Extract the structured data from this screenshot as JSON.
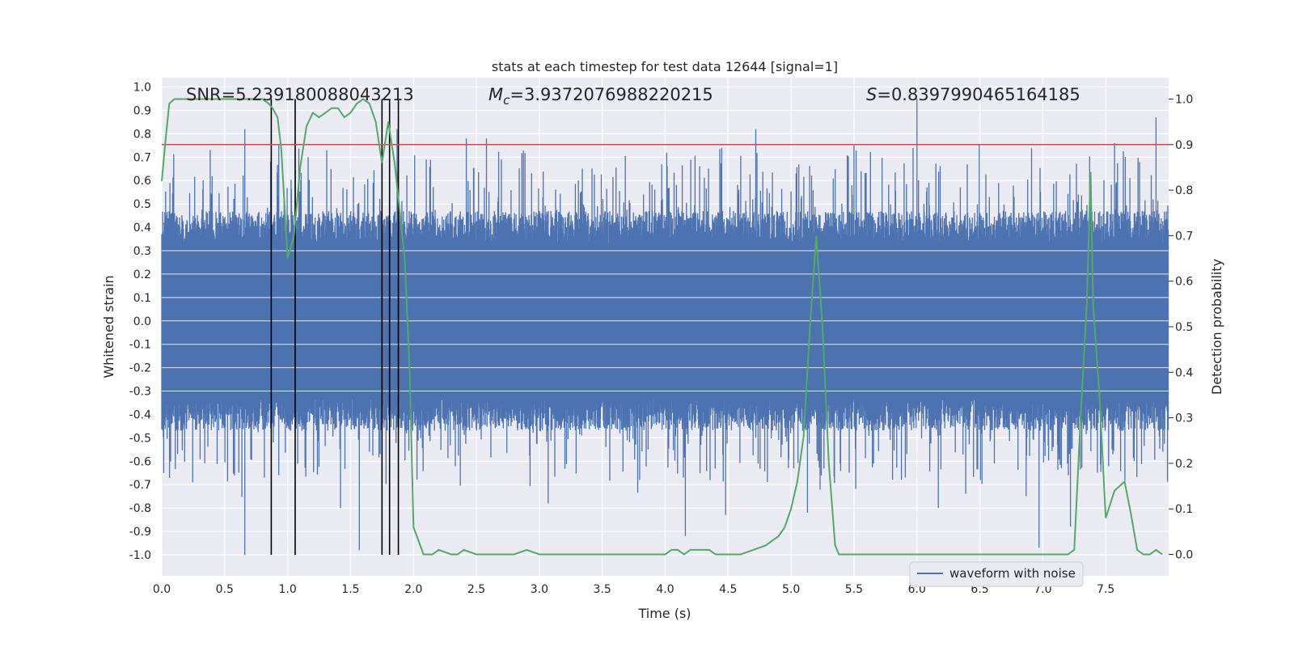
{
  "chart_data": {
    "type": "line",
    "title": "stats at each timestep for test data 12644 [signal=1]",
    "xlabel": "Time (s)",
    "ylabel_left": "Whitened strain",
    "ylabel_right": "Detection probability",
    "xlim": [
      0.0,
      8.0
    ],
    "ylim_left": [
      -1.09,
      1.04
    ],
    "ylim_right": [
      -0.047,
      1.047
    ],
    "x_ticks": [
      0.0,
      0.5,
      1.0,
      1.5,
      2.0,
      2.5,
      3.0,
      3.5,
      4.0,
      4.5,
      5.0,
      5.5,
      6.0,
      6.5,
      7.0,
      7.5
    ],
    "x_tick_labels": [
      "0.0",
      "0.5",
      "1.0",
      "1.5",
      "2.0",
      "2.5",
      "3.0",
      "3.5",
      "4.0",
      "4.5",
      "5.0",
      "5.5",
      "6.0",
      "6.5",
      "7.0",
      "7.5"
    ],
    "y_left_ticks": [
      1.0,
      0.9,
      0.8,
      0.7,
      0.6,
      0.5,
      0.4,
      0.3,
      0.2,
      0.1,
      0.0,
      -0.1,
      -0.2,
      -0.3,
      -0.4,
      -0.5,
      -0.6,
      -0.7,
      -0.8,
      -0.9,
      -1.0
    ],
    "y_left_tick_labels": [
      "1.0",
      "0.9",
      "0.8",
      "0.7",
      "0.6",
      "0.5",
      "0.4",
      "0.3",
      "0.2",
      "0.1",
      "0.0",
      "-0.1",
      "-0.2",
      "-0.3",
      "-0.4",
      "-0.5",
      "-0.6",
      "-0.7",
      "-0.8",
      "-0.9",
      "-1.0"
    ],
    "y_right_ticks": [
      1.0,
      0.9,
      0.8,
      0.7,
      0.6,
      0.5,
      0.4,
      0.3,
      0.2,
      0.1,
      0.0
    ],
    "y_right_tick_labels": [
      "1.0",
      "0.9",
      "0.8",
      "0.7",
      "0.6",
      "0.5",
      "0.4",
      "0.3",
      "0.2",
      "0.1",
      "0.0"
    ],
    "annotations": [
      {
        "text": "SNR=5.239180088043213",
        "x": 0.2
      },
      {
        "text": "M_c=3.9372076988220215",
        "x": 2.6
      },
      {
        "text": "S=0.8397990465164185",
        "x": 5.6
      }
    ],
    "annotation_labels": {
      "snr": "SNR=5.239180088043213",
      "mc_base": "M",
      "mc_sub": "c",
      "mc_value": "=3.9372076988220215",
      "s_base": "S",
      "s_value": "=0.8397990465164185"
    },
    "threshold_right": 0.9,
    "vertical_lines": [
      0.87,
      1.06,
      1.75,
      1.81,
      1.88
    ],
    "waveform": {
      "name": "waveform with noise",
      "color": "#4c72b0",
      "core_amplitude": 0.33,
      "spikes": [
        {
          "x": 0.66,
          "y": 0.82
        },
        {
          "x": 0.66,
          "y": -1.0
        },
        {
          "x": 0.93,
          "y": 0.75
        },
        {
          "x": 0.93,
          "y": -0.66
        },
        {
          "x": 1.57,
          "y": -0.98
        },
        {
          "x": 1.42,
          "y": -0.8
        },
        {
          "x": 1.87,
          "y": 0.82
        },
        {
          "x": 2.42,
          "y": 0.78
        },
        {
          "x": 2.58,
          "y": 0.78
        },
        {
          "x": 3.07,
          "y": -0.78
        },
        {
          "x": 4.16,
          "y": -0.92
        },
        {
          "x": 4.72,
          "y": 0.82
        },
        {
          "x": 4.48,
          "y": -0.83
        },
        {
          "x": 5.13,
          "y": -0.82
        },
        {
          "x": 5.5,
          "y": 0.75
        },
        {
          "x": 6.0,
          "y": 0.95
        },
        {
          "x": 6.17,
          "y": -0.8
        },
        {
          "x": 6.97,
          "y": -0.97
        },
        {
          "x": 7.22,
          "y": -0.88
        },
        {
          "x": 7.9,
          "y": 0.87
        },
        {
          "x": 7.57,
          "y": 0.76
        }
      ]
    },
    "detection_probability": {
      "color": "#55a868",
      "x": [
        0.0,
        0.03,
        0.06,
        0.1,
        0.2,
        0.3,
        0.4,
        0.5,
        0.6,
        0.7,
        0.75,
        0.8,
        0.85,
        0.88,
        0.92,
        0.95,
        1.0,
        1.05,
        1.1,
        1.15,
        1.2,
        1.25,
        1.3,
        1.35,
        1.4,
        1.45,
        1.5,
        1.55,
        1.6,
        1.65,
        1.7,
        1.75,
        1.8,
        1.85,
        1.9,
        1.93,
        1.97,
        2.0,
        2.08,
        2.15,
        2.2,
        2.3,
        2.35,
        2.4,
        2.5,
        2.6,
        2.7,
        2.8,
        2.9,
        3.0,
        3.1,
        3.2,
        3.3,
        3.5,
        3.7,
        3.9,
        4.0,
        4.05,
        4.1,
        4.15,
        4.2,
        4.25,
        4.3,
        4.35,
        4.4,
        4.5,
        4.6,
        4.7,
        4.8,
        4.85,
        4.9,
        4.95,
        5.0,
        5.05,
        5.1,
        5.15,
        5.2,
        5.25,
        5.3,
        5.35,
        5.38,
        5.45,
        5.6,
        5.8,
        6.0,
        6.2,
        6.4,
        6.6,
        6.8,
        7.0,
        7.1,
        7.2,
        7.25,
        7.3,
        7.35,
        7.38,
        7.4,
        7.45,
        7.5,
        7.57,
        7.65,
        7.7,
        7.75,
        7.8,
        7.85,
        7.9,
        7.95
      ],
      "y": [
        0.82,
        0.91,
        0.99,
        1.0,
        1.0,
        1.0,
        1.0,
        1.0,
        1.0,
        1.0,
        1.0,
        1.0,
        0.99,
        0.98,
        0.96,
        0.89,
        0.65,
        0.7,
        0.85,
        0.94,
        0.97,
        0.96,
        0.97,
        0.98,
        0.98,
        0.96,
        0.97,
        0.99,
        1.0,
        0.99,
        0.95,
        0.86,
        0.95,
        0.86,
        0.73,
        0.65,
        0.4,
        0.06,
        0.0,
        0.0,
        0.01,
        0.0,
        0.0,
        0.01,
        0.0,
        0.0,
        0.0,
        0.0,
        0.01,
        0.0,
        0.0,
        0.0,
        0.0,
        0.0,
        0.0,
        0.0,
        0.0,
        0.01,
        0.01,
        0.0,
        0.01,
        0.01,
        0.01,
        0.01,
        0.0,
        0.0,
        0.0,
        0.01,
        0.02,
        0.03,
        0.04,
        0.06,
        0.1,
        0.16,
        0.26,
        0.5,
        0.7,
        0.5,
        0.2,
        0.02,
        0.0,
        0.0,
        0.0,
        0.0,
        0.0,
        0.0,
        0.0,
        0.0,
        0.0,
        0.0,
        0.0,
        0.0,
        0.01,
        0.3,
        0.55,
        0.84,
        0.55,
        0.35,
        0.08,
        0.14,
        0.16,
        0.09,
        0.01,
        0.0,
        0.0,
        0.01,
        0.0
      ]
    },
    "legend": {
      "label": "waveform with noise",
      "placement": "bottom-right"
    }
  }
}
